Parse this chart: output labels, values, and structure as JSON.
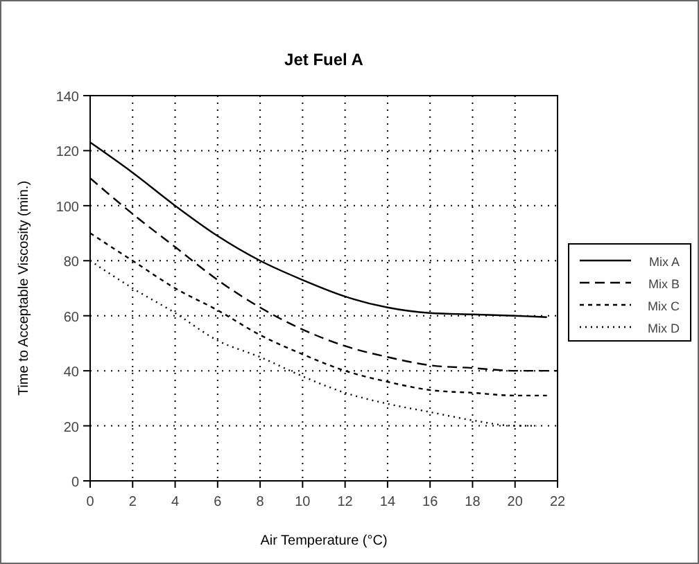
{
  "chart_data": {
    "type": "line",
    "title": "Jet Fuel A",
    "xlabel": "Air Temperature (°C)",
    "ylabel": "Time to Acceptable Viscosity (min.)",
    "xlim": [
      0,
      22
    ],
    "xticks": [
      0,
      2,
      4,
      6,
      8,
      10,
      12,
      14,
      16,
      18,
      20,
      22
    ],
    "ylim": [
      0,
      140
    ],
    "yticks": [
      0,
      20,
      40,
      60,
      80,
      100,
      120,
      140
    ],
    "grid": true,
    "legend": "right",
    "series": [
      {
        "name": "Mix A",
        "color": "#000000",
        "line_style": "solid",
        "x": [
          0,
          2,
          4,
          6,
          8,
          10,
          12,
          14,
          16,
          18,
          20,
          21.5
        ],
        "values": [
          123,
          112,
          100,
          89,
          80,
          73,
          67,
          63,
          61,
          60.5,
          60,
          59.5
        ]
      },
      {
        "name": "Mix B",
        "color": "#000000",
        "line_style": "dashed",
        "x": [
          0,
          2,
          4,
          6,
          8,
          10,
          12,
          14,
          16,
          18,
          20,
          22
        ],
        "values": [
          110,
          97,
          85,
          73,
          63,
          55,
          49,
          45,
          42,
          41,
          40,
          40
        ]
      },
      {
        "name": "Mix C",
        "color": "#000000",
        "line_style": "dashdot",
        "x": [
          0,
          2,
          4,
          6,
          8,
          10,
          12,
          14,
          16,
          18,
          20,
          21.5
        ],
        "values": [
          90,
          80,
          70,
          62,
          53,
          46,
          40,
          36,
          33,
          32,
          31,
          31
        ]
      },
      {
        "name": "Mix D",
        "color": "#000000",
        "line_style": "dotted",
        "x": [
          0,
          2,
          4,
          6,
          8,
          10,
          12,
          14,
          16,
          18,
          20,
          21
        ],
        "values": [
          80,
          70,
          61,
          51,
          45,
          38,
          32,
          28,
          25,
          22,
          20,
          20
        ]
      }
    ]
  }
}
